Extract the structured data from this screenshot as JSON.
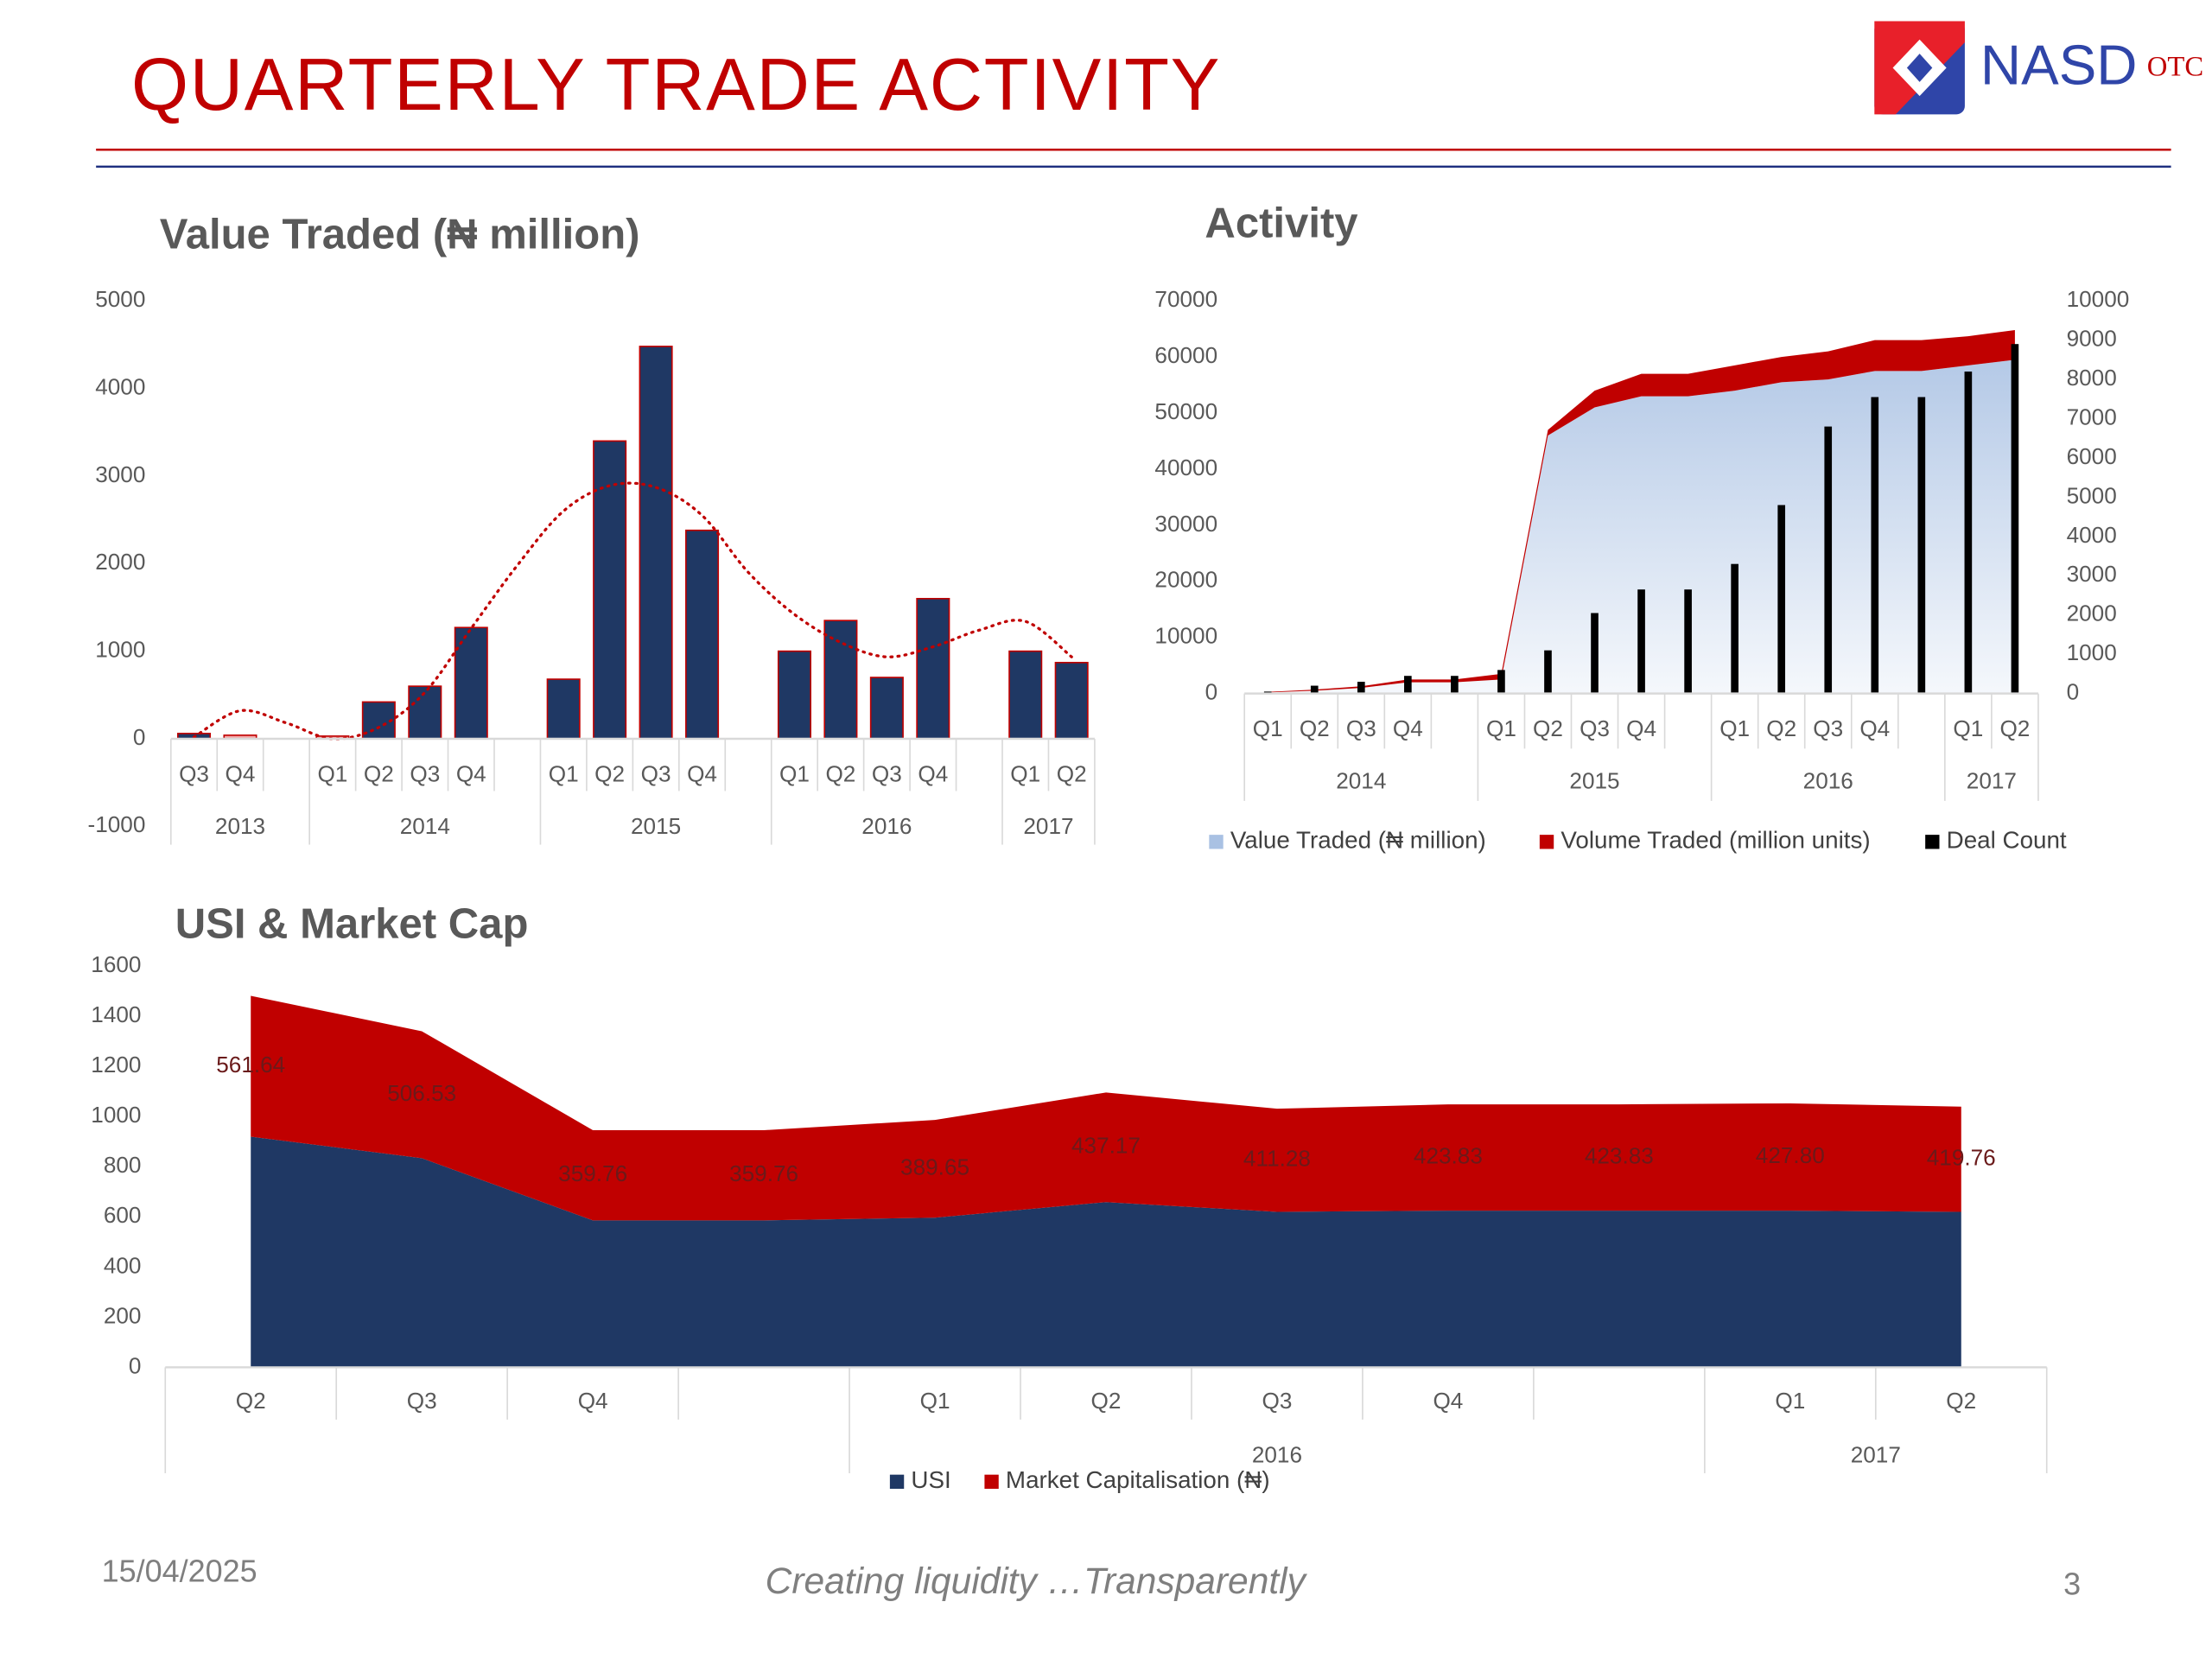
{
  "slide": {
    "title": "QUARTERLY TRADE ACTIVITY",
    "logo": {
      "name": "NASD",
      "suffix": "OTC"
    },
    "date": "15/04/2025",
    "tagline": "Creating liquidity …Transparently",
    "page": "3"
  },
  "chart_data": [
    {
      "type": "bar",
      "title": "Value  Traded (₦ million)",
      "categories": [
        "Q3",
        "Q4",
        null,
        "Q1",
        "Q2",
        "Q3",
        "Q4",
        null,
        "Q1",
        "Q2",
        "Q3",
        "Q4",
        null,
        "Q1",
        "Q2",
        "Q3",
        "Q4",
        null,
        "Q1",
        "Q2"
      ],
      "category_groups": [
        "2013",
        "2013",
        "2013",
        "2014",
        "2014",
        "2014",
        "2014",
        "2014",
        "2015",
        "2015",
        "2015",
        "2015",
        "2015",
        "2016",
        "2016",
        "2016",
        "2016",
        "2016",
        "2017",
        "2017"
      ],
      "values": [
        60,
        40,
        null,
        30,
        420,
        600,
        1270,
        null,
        680,
        3400,
        4480,
        2380,
        null,
        1000,
        1350,
        700,
        1600,
        null,
        1000,
        870
      ],
      "colors": [
        "#1f3864",
        "#f2a7a7",
        null,
        "#f2a7a7",
        "#1f3864",
        "#1f3864",
        "#1f3864",
        null,
        "#1f3864",
        "#1f3864",
        "#1f3864",
        "#1f3864",
        null,
        "#1f3864",
        "#1f3864",
        "#1f3864",
        "#1f3864",
        null,
        "#1f3864",
        "#1f3864"
      ],
      "edge_color": "#c00000",
      "trend": {
        "color": "#c00000",
        "values": [
          20,
          320,
          180,
          0,
          130,
          530,
          1260,
          1980,
          2600,
          2890,
          2870,
          2550,
          1900,
          1420,
          1100,
          935,
          1050,
          1240,
          1340,
          935
        ]
      },
      "ylim": [
        -1000,
        5000
      ],
      "yticks": [
        -1000,
        0,
        1000,
        2000,
        3000,
        4000,
        5000
      ]
    },
    {
      "type": "combo",
      "title": "Activity",
      "categories": [
        "Q1",
        "Q2",
        "Q3",
        "Q4",
        null,
        "Q1",
        "Q2",
        "Q3",
        "Q4",
        null,
        "Q1",
        "Q2",
        "Q3",
        "Q4",
        null,
        "Q1",
        "Q2"
      ],
      "category_groups": [
        "2014",
        "2014",
        "2014",
        "2014",
        "2014",
        "2015",
        "2015",
        "2015",
        "2015",
        "2015",
        "2016",
        "2016",
        "2016",
        "2016",
        "2016",
        "2017",
        "2017"
      ],
      "stacked": true,
      "series": [
        {
          "name": "Value  Traded (₦ million)",
          "type": "area",
          "color": "#a9c1e3",
          "values": [
            200,
            500,
            1000,
            2000,
            2000,
            2500,
            46000,
            51000,
            53000,
            53000,
            54000,
            55500,
            56000,
            57500,
            57500,
            58500,
            59500
          ]
        },
        {
          "name": "Volume Traded (million units)",
          "type": "area",
          "color": "#c00000",
          "values": [
            100,
            200,
            300,
            500,
            500,
            1000,
            1000,
            3000,
            4000,
            4000,
            4500,
            4500,
            5000,
            5500,
            5500,
            5200,
            5300
          ]
        },
        {
          "name": "Deal Count",
          "type": "bar",
          "axis": "y2",
          "color": "#000000",
          "values": [
            50,
            200,
            300,
            450,
            450,
            600,
            1100,
            2050,
            2650,
            2650,
            3300,
            4800,
            6800,
            7550,
            7550,
            8200,
            8900
          ]
        }
      ],
      "ylim": [
        0,
        70000
      ],
      "yticks": [
        0,
        10000,
        20000,
        30000,
        40000,
        50000,
        60000,
        70000
      ],
      "y2lim": [
        0,
        10000
      ],
      "y2ticks": [
        0,
        1000,
        2000,
        3000,
        4000,
        5000,
        6000,
        7000,
        8000,
        9000,
        10000
      ],
      "legend": "bottom"
    },
    {
      "type": "area",
      "title": "USI & Market Cap",
      "categories": [
        "Q2",
        "Q3",
        "Q4",
        null,
        "Q1",
        "Q2",
        "Q3",
        "Q4",
        null,
        "Q1",
        "Q2"
      ],
      "category_groups": [
        null,
        null,
        null,
        null,
        "2016",
        "2016",
        "2016",
        "2016",
        "2016",
        "2017",
        "2017"
      ],
      "stacked": true,
      "series": [
        {
          "name": "USI",
          "color": "#1f3864",
          "values": [
            920,
            834,
            586,
            586,
            597,
            659,
            620,
            625,
            625,
            625,
            620
          ]
        },
        {
          "name": "Market Capitalisation (₦)",
          "color": "#c00000",
          "values": [
            561.64,
            506.53,
            359.76,
            359.76,
            389.65,
            437.17,
            411.28,
            423.83,
            423.83,
            427.8,
            419.76
          ],
          "value_labels": [
            "561.64",
            "506.53",
            "359.76",
            "359.76",
            "389.65",
            "437.17",
            "411.28",
            "423.83",
            "423.83",
            "427.80",
            "419.76"
          ]
        }
      ],
      "ylim": [
        0,
        1600
      ],
      "yticks": [
        0,
        200,
        400,
        600,
        800,
        1000,
        1200,
        1400,
        1600
      ],
      "legend": "bottom"
    }
  ]
}
